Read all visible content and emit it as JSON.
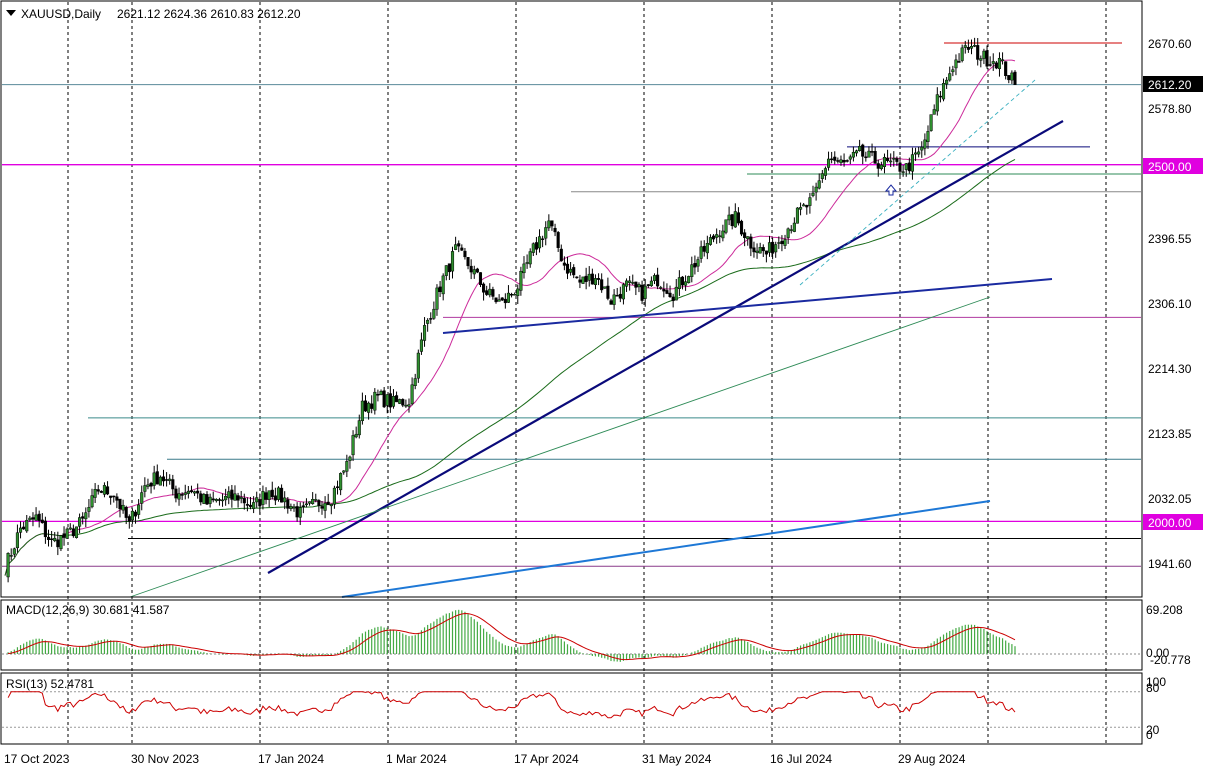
{
  "header": {
    "symbol": "XAUUSD,Daily",
    "ohlc": "2621.12 2624.36 2610.83 2612.20"
  },
  "colors": {
    "bull": "#2f8f2f",
    "bear": "#000000",
    "ma_fast": "#cc2a9a",
    "ma_mid": "#2e8b57",
    "ma_slow": "#1a6b1a",
    "trend_navy": "#0a0a7a",
    "trend_blue": "#1e78d6",
    "level_magenta": "#e000e0",
    "macd_hist": "#44aa44",
    "macd_signal": "#cc0000",
    "rsi_line": "#cc0000"
  },
  "main_axis": {
    "ticks": [
      "2670.60",
      "2578.80",
      "2396.55",
      "2306.10",
      "2214.30",
      "2123.85",
      "2032.05",
      "1941.60"
    ],
    "current_price_label": "2612.20",
    "level_labels": [
      "2500.00",
      "2000.00"
    ]
  },
  "x_axis": {
    "labels": [
      "17 Oct 2023",
      "30 Nov 2023",
      "17 Jan 2024",
      "1 Mar 2024",
      "17 Apr 2024",
      "31 May 2024",
      "16 Jul 2024",
      "29 Aug 2024"
    ]
  },
  "macd": {
    "title": "MACD(12,26,9) 30.681 41.587",
    "ticks": [
      "69.208",
      "0.00",
      "-20.778"
    ]
  },
  "rsi": {
    "title": "RSI(13) 52.4781",
    "ticks": [
      "100",
      "80",
      "20",
      "0"
    ]
  },
  "chart_data": {
    "type": "candlestick",
    "symbol": "XAUUSD",
    "timeframe": "Daily",
    "price_range": [
      1910,
      2700
    ],
    "close_path": [
      [
        0,
        1935
      ],
      [
        5,
        1990
      ],
      [
        10,
        2005
      ],
      [
        15,
        1970
      ],
      [
        20,
        1980
      ],
      [
        25,
        2000
      ],
      [
        30,
        2045
      ],
      [
        35,
        2040
      ],
      [
        40,
        1995
      ],
      [
        45,
        2050
      ],
      [
        50,
        2065
      ],
      [
        55,
        2040
      ],
      [
        60,
        2045
      ],
      [
        65,
        2025
      ],
      [
        70,
        2030
      ],
      [
        75,
        2035
      ],
      [
        80,
        2020
      ],
      [
        85,
        2045
      ],
      [
        90,
        2030
      ],
      [
        95,
        2010
      ],
      [
        100,
        2025
      ],
      [
        105,
        2035
      ],
      [
        110,
        2080
      ],
      [
        115,
        2160
      ],
      [
        120,
        2175
      ],
      [
        125,
        2165
      ],
      [
        130,
        2170
      ],
      [
        135,
        2270
      ],
      [
        140,
        2330
      ],
      [
        145,
        2380
      ],
      [
        150,
        2355
      ],
      [
        155,
        2320
      ],
      [
        160,
        2305
      ],
      [
        165,
        2330
      ],
      [
        170,
        2380
      ],
      [
        175,
        2420
      ],
      [
        180,
        2360
      ],
      [
        185,
        2335
      ],
      [
        190,
        2345
      ],
      [
        195,
        2310
      ],
      [
        200,
        2330
      ],
      [
        205,
        2320
      ],
      [
        210,
        2340
      ],
      [
        215,
        2320
      ],
      [
        220,
        2350
      ],
      [
        225,
        2380
      ],
      [
        230,
        2410
      ],
      [
        235,
        2425
      ],
      [
        240,
        2390
      ],
      [
        245,
        2375
      ],
      [
        250,
        2400
      ],
      [
        255,
        2430
      ],
      [
        260,
        2450
      ],
      [
        265,
        2510
      ],
      [
        270,
        2500
      ],
      [
        275,
        2515
      ],
      [
        280,
        2505
      ],
      [
        285,
        2500
      ],
      [
        290,
        2495
      ],
      [
        295,
        2520
      ],
      [
        300,
        2590
      ],
      [
        305,
        2640
      ],
      [
        310,
        2665
      ],
      [
        315,
        2650
      ],
      [
        320,
        2645
      ],
      [
        325,
        2612.2
      ]
    ],
    "horizontal_levels": [
      2670.6,
      2525,
      2487,
      2462,
      2286,
      2145,
      2087,
      2000,
      2000,
      1976,
      1937,
      2500,
      2500
    ],
    "macd_params": [
      12,
      26,
      9
    ],
    "macd_values": {
      "macd": 30.681,
      "signal": 41.587
    },
    "rsi_period": 13,
    "rsi_value": 52.4781
  }
}
